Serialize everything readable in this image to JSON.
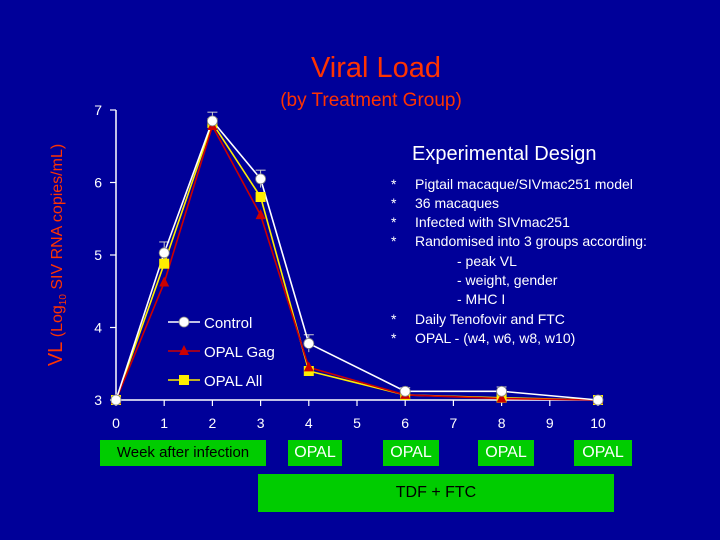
{
  "slide": {
    "title": "Viral Load",
    "subtitle": "(by Treatment Group)",
    "ylabel_vl": "VL",
    "ylabel_log": "(Log",
    "ylabel_sub": "10",
    "ylabel_rest": " SIV RNA copies/mL)",
    "xlabel": "Week after infection",
    "tdf_label": "TDF + FTC",
    "opal_labels": [
      "OPAL",
      "OPAL",
      "OPAL",
      "OPAL"
    ]
  },
  "design": {
    "title": "Experimental Design",
    "bullet": "*",
    "items": [
      "Pigtail macaque/SIVmac251 model",
      "36 macaques",
      "Infected with SIVmac251",
      "Randomised into 3 groups according:",
      "- peak VL",
      "- weight, gender",
      "- MHC I",
      "Daily Tenofovir and FTC",
      "OPAL - (w4, w6, w8, w10)"
    ]
  },
  "colors": {
    "background": "#000099",
    "title": "#ff3300",
    "control": "#ffffff",
    "opal_gag": "#cc0000",
    "opal_all": "#ffee00",
    "axis": "#ffffff",
    "box": "#00cc00"
  },
  "chart_data": {
    "type": "line",
    "x": [
      0,
      1,
      2,
      3,
      4,
      6,
      8,
      10
    ],
    "xticks": [
      0,
      1,
      2,
      3,
      4,
      5,
      6,
      7,
      8,
      9,
      10
    ],
    "yticks": [
      3,
      4,
      5,
      6,
      7
    ],
    "xlim": [
      0,
      10
    ],
    "ylim": [
      3,
      7
    ],
    "legend_position": "lower-left",
    "series": [
      {
        "name": "Control",
        "marker": "circle",
        "color": "#ffffff",
        "values": [
          3,
          5.03,
          6.85,
          6.05,
          3.78,
          3.12,
          3.12,
          3
        ]
      },
      {
        "name": "OPAL Gag",
        "marker": "triangle",
        "color": "#cc0000",
        "values": [
          3,
          4.62,
          6.78,
          5.55,
          3.45,
          3.07,
          3.02,
          3
        ]
      },
      {
        "name": "OPAL All",
        "marker": "square",
        "color": "#ffee00",
        "values": [
          3,
          4.88,
          6.82,
          5.8,
          3.4,
          3.07,
          3.03,
          3
        ]
      }
    ]
  }
}
